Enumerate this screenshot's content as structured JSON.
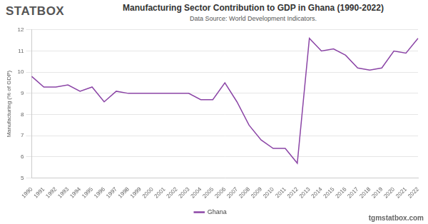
{
  "chart_data": {
    "type": "line",
    "title": "Manufacturing Sector Contribution to GDP in Ghana (1990-2022)",
    "subtitle": "Data Source: World Development Indicators.",
    "annotations": [
      "STATBOX",
      "tgmstatbox.com"
    ],
    "y_label": "Manufacturing (% of GDP)",
    "categories": [
      "1990",
      "1991",
      "1992",
      "1993",
      "1994",
      "1995",
      "1996",
      "1997",
      "1998",
      "1999",
      "2000",
      "2001",
      "2002",
      "2003",
      "2004",
      "2005",
      "2006",
      "2007",
      "2008",
      "2009",
      "2010",
      "2011",
      "2012",
      "2013",
      "2014",
      "2015",
      "2016",
      "2017",
      "2018",
      "2019",
      "2020",
      "2021",
      "2022"
    ],
    "series": [
      {
        "name": "Ghana",
        "color": "#8b45a6",
        "values": [
          9.8,
          9.3,
          9.3,
          9.4,
          9.1,
          9.3,
          8.6,
          9.1,
          9.0,
          9.0,
          9.0,
          9.0,
          9.0,
          9.0,
          8.7,
          8.7,
          9.5,
          8.6,
          7.5,
          6.8,
          6.4,
          6.4,
          5.7,
          11.6,
          11.0,
          11.1,
          10.8,
          10.2,
          10.1,
          10.2,
          11.0,
          10.9,
          11.6
        ]
      }
    ],
    "ylim": [
      5,
      12
    ],
    "yticks": [
      5,
      6,
      7,
      8,
      9,
      10,
      11,
      12
    ],
    "grid": true,
    "legend": "bottom"
  }
}
